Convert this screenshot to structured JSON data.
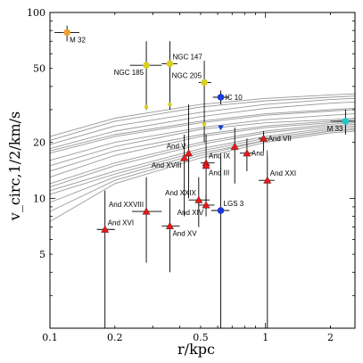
{
  "chart_data": {
    "type": "scatter",
    "title": "",
    "xlabel": "r/kpc",
    "ylabel": "v_circ,1/2/km/s",
    "xscale": "log",
    "yscale": "log",
    "xlim": [
      0.1,
      2.6
    ],
    "ylim": [
      2,
      100
    ],
    "grid": false,
    "x_ticks": [
      {
        "value": 0.1,
        "label": "0.1"
      },
      {
        "value": 0.2,
        "label": "0.2"
      },
      {
        "value": 0.5,
        "label": "0.5"
      },
      {
        "value": 1,
        "label": "1"
      },
      {
        "value": 2,
        "label": "2"
      }
    ],
    "y_ticks": [
      {
        "value": 5,
        "label": "5"
      },
      {
        "value": 10,
        "label": "10"
      },
      {
        "value": 20,
        "label": "20"
      },
      {
        "value": 50,
        "label": "50"
      },
      {
        "value": 100,
        "label": "100"
      }
    ],
    "curve_color": "#999999",
    "curves": [
      [
        [
          0.1,
          16.0
        ],
        [
          0.2,
          20.0
        ],
        [
          0.5,
          24.0
        ],
        [
          1,
          26.5
        ],
        [
          2,
          28.0
        ],
        [
          2.6,
          28.5
        ]
      ],
      [
        [
          0.1,
          17.5
        ],
        [
          0.2,
          21.5
        ],
        [
          0.5,
          25.5
        ],
        [
          1,
          28.0
        ],
        [
          2,
          29.5
        ],
        [
          2.6,
          30.0
        ]
      ],
      [
        [
          0.1,
          18.5
        ],
        [
          0.2,
          23.0
        ],
        [
          0.5,
          27.5
        ],
        [
          1,
          30.5
        ],
        [
          2,
          32.5
        ],
        [
          2.6,
          33.0
        ]
      ],
      [
        [
          0.1,
          19.5
        ],
        [
          0.2,
          24.5
        ],
        [
          0.5,
          29.0
        ],
        [
          1,
          32.0
        ],
        [
          2,
          34.0
        ],
        [
          2.6,
          34.5
        ]
      ],
      [
        [
          0.1,
          20.5
        ],
        [
          0.2,
          26.0
        ],
        [
          0.5,
          31.0
        ],
        [
          1,
          33.5
        ],
        [
          2,
          35.0
        ],
        [
          2.6,
          35.5
        ]
      ],
      [
        [
          0.1,
          21.5
        ],
        [
          0.2,
          27.0
        ],
        [
          0.5,
          32.0
        ],
        [
          1,
          34.5
        ],
        [
          2,
          36.0
        ],
        [
          2.6,
          36.5
        ]
      ],
      [
        [
          0.1,
          15.0
        ],
        [
          0.2,
          19.0
        ],
        [
          0.5,
          23.5
        ],
        [
          1,
          25.5
        ],
        [
          2,
          26.5
        ],
        [
          2.6,
          27.0
        ]
      ],
      [
        [
          0.1,
          14.0
        ],
        [
          0.2,
          18.0
        ],
        [
          0.5,
          22.0
        ],
        [
          1,
          24.5
        ],
        [
          2,
          26.0
        ],
        [
          2.6,
          26.5
        ]
      ],
      [
        [
          0.1,
          13.0
        ],
        [
          0.2,
          17.0
        ],
        [
          0.5,
          21.5
        ],
        [
          1,
          24.0
        ],
        [
          2,
          25.5
        ],
        [
          2.6,
          26.0
        ]
      ],
      [
        [
          0.1,
          12.0
        ],
        [
          0.2,
          15.5
        ],
        [
          0.5,
          20.0
        ],
        [
          1,
          23.0
        ],
        [
          2,
          25.0
        ],
        [
          2.6,
          25.5
        ]
      ],
      [
        [
          0.1,
          11.5
        ],
        [
          0.2,
          15.0
        ],
        [
          0.5,
          19.5
        ],
        [
          1,
          22.5
        ],
        [
          2,
          24.5
        ],
        [
          2.6,
          25.0
        ]
      ],
      [
        [
          0.1,
          11.0
        ],
        [
          0.2,
          14.0
        ],
        [
          0.5,
          18.5
        ],
        [
          1,
          21.5
        ],
        [
          2,
          24.0
        ],
        [
          2.6,
          24.5
        ]
      ],
      [
        [
          0.1,
          10.5
        ],
        [
          0.2,
          13.5
        ],
        [
          0.5,
          18.0
        ],
        [
          1,
          21.0
        ],
        [
          2,
          23.5
        ],
        [
          2.6,
          24.0
        ]
      ],
      [
        [
          0.1,
          9.5
        ],
        [
          0.2,
          13.0
        ],
        [
          0.5,
          17.5
        ],
        [
          1,
          20.5
        ],
        [
          2,
          23.0
        ],
        [
          2.6,
          23.5
        ]
      ],
      [
        [
          0.1,
          8.5
        ],
        [
          0.2,
          12.5
        ],
        [
          0.5,
          17.0
        ],
        [
          1,
          20.5
        ],
        [
          2,
          23.0
        ],
        [
          2.6,
          23.5
        ]
      ],
      [
        [
          0.1,
          7.5
        ],
        [
          0.2,
          12.0
        ],
        [
          0.5,
          16.5
        ],
        [
          1,
          20.0
        ],
        [
          2,
          22.5
        ],
        [
          2.6,
          23.0
        ]
      ],
      [
        [
          0.1,
          18.0
        ],
        [
          0.2,
          22.0
        ],
        [
          0.5,
          26.0
        ],
        [
          1,
          28.5
        ],
        [
          2,
          30.0
        ],
        [
          2.6,
          30.5
        ]
      ]
    ],
    "points": [
      {
        "name": "M 32",
        "x": 0.12,
        "y": 78,
        "color": "#f0a030",
        "marker": "circle",
        "xerr": [
          0.105,
          0.137
        ],
        "yerr": [
          70,
          85
        ],
        "label_pos": "below-right"
      },
      {
        "name": "NGC 185",
        "x": 0.28,
        "y": 52,
        "color": "#d8d020",
        "marker": "circle",
        "xerr": [
          0.235,
          0.33
        ],
        "yerr": [
          30,
          70
        ],
        "label_pos": "below-left"
      },
      {
        "name": "NGC 147",
        "x": 0.36,
        "y": 53,
        "color": "#d8d020",
        "marker": "circle",
        "xerr": [
          0.33,
          0.39
        ],
        "yerr": [
          30,
          70
        ],
        "label_pos": "above-right"
      },
      {
        "name": "NGC 205",
        "x": 0.52,
        "y": 42,
        "color": "#d8d020",
        "marker": "circle",
        "xerr": [
          0.49,
          0.56
        ],
        "yerr": [
          20,
          55
        ],
        "label_pos": "above-left"
      },
      {
        "name": "IC 10",
        "x": 0.62,
        "y": 35,
        "color": "#1a3ad8",
        "marker": "circle",
        "xerr": [
          0.57,
          0.68
        ],
        "yerr": [
          32,
          38
        ],
        "label_pos": "right"
      },
      {
        "name": "M 33",
        "x": 2.35,
        "y": 26,
        "color": "#20c8c8",
        "marker": "circle",
        "xerr": [
          2.0,
          2.6
        ],
        "yerr": [
          22,
          30
        ],
        "label_pos": "below-left"
      },
      {
        "name": "",
        "x": 0.28,
        "y": 31,
        "color": "#d8d020",
        "marker": "circle",
        "xerr": null,
        "yerr": null,
        "label_pos": ""
      },
      {
        "name": "",
        "x": 0.36,
        "y": 32,
        "color": "#d8d020",
        "marker": "circle",
        "xerr": null,
        "yerr": null,
        "label_pos": ""
      },
      {
        "name": "",
        "x": 0.52,
        "y": 25,
        "color": "#d8d020",
        "marker": "circle",
        "xerr": null,
        "yerr": null,
        "label_pos": ""
      },
      {
        "name": "",
        "x": 0.62,
        "y": 24,
        "color": "#1a3ad8",
        "marker": "tri-down",
        "xerr": null,
        "yerr": null,
        "label_pos": ""
      },
      {
        "name": "And V",
        "x": 0.44,
        "y": 17.5,
        "color": "#e81818",
        "marker": "triangle",
        "xerr": null,
        "yerr": [
          10,
          32
        ],
        "label_pos": "above-left"
      },
      {
        "name": "And XVIII",
        "x": 0.42,
        "y": 16.5,
        "color": "#e81818",
        "marker": "triangle",
        "xerr": null,
        "yerr": [
          8,
          22
        ],
        "label_pos": "below-left"
      },
      {
        "name": "And IX",
        "x": 0.53,
        "y": 15.5,
        "color": "#e81818",
        "marker": "triangle",
        "xerr": [
          0.5,
          0.58
        ],
        "yerr": [
          9,
          22
        ],
        "label_pos": "above-right"
      },
      {
        "name": "And III",
        "x": 0.53,
        "y": 15.0,
        "color": "#e81818",
        "marker": "triangle",
        "xerr": null,
        "yerr": null,
        "label_pos": "below-right"
      },
      {
        "name": "And I",
        "x": 0.82,
        "y": 17.5,
        "color": "#e81818",
        "marker": "triangle",
        "xerr": [
          0.76,
          0.88
        ],
        "yerr": [
          14,
          21
        ],
        "label_pos": "right"
      },
      {
        "name": "",
        "x": 0.72,
        "y": 19.0,
        "color": "#e81818",
        "marker": "triangle",
        "xerr": null,
        "yerr": [
          12,
          24
        ],
        "label_pos": ""
      },
      {
        "name": "And VII",
        "x": 0.98,
        "y": 21.0,
        "color": "#e81818",
        "marker": "triangle",
        "xerr": [
          0.93,
          1.03
        ],
        "yerr": [
          18,
          23
        ],
        "label_pos": "right"
      },
      {
        "name": "And XXI",
        "x": 1.02,
        "y": 12.5,
        "color": "#e81818",
        "marker": "triangle",
        "xerr": [
          0.93,
          1.1
        ],
        "yerr": [
          2,
          17
        ],
        "label_pos": "above-right"
      },
      {
        "name": "And XXIX",
        "x": 0.49,
        "y": 9.8,
        "color": "#e81818",
        "marker": "triangle",
        "xerr": [
          0.44,
          0.55
        ],
        "yerr": [
          7,
          13
        ],
        "label_pos": "above-left"
      },
      {
        "name": "And XIV",
        "x": 0.53,
        "y": 9.2,
        "color": "#e81818",
        "marker": "triangle",
        "xerr": [
          0.49,
          0.58
        ],
        "yerr": [
          8,
          10.5
        ],
        "label_pos": "below-left"
      },
      {
        "name": "LGS 3",
        "x": 0.62,
        "y": 8.6,
        "color": "#1a3ad8",
        "marker": "circle",
        "xerr": [
          0.56,
          0.68
        ],
        "yerr": [
          2,
          17
        ],
        "label_pos": "above-right"
      },
      {
        "name": "And XXVIII",
        "x": 0.28,
        "y": 8.5,
        "color": "#e81818",
        "marker": "triangle",
        "xerr": [
          0.24,
          0.33
        ],
        "yerr": [
          4.5,
          13
        ],
        "label_pos": "above-left"
      },
      {
        "name": "And XVI",
        "x": 0.18,
        "y": 6.8,
        "color": "#e81818",
        "marker": "triangle",
        "xerr": [
          0.165,
          0.2
        ],
        "yerr": [
          2,
          11
        ],
        "label_pos": "above-right"
      },
      {
        "name": "And XV",
        "x": 0.36,
        "y": 7.1,
        "color": "#e81818",
        "marker": "triangle",
        "xerr": [
          0.33,
          0.4
        ],
        "yerr": [
          4,
          10
        ],
        "label_pos": "below-right"
      }
    ]
  }
}
